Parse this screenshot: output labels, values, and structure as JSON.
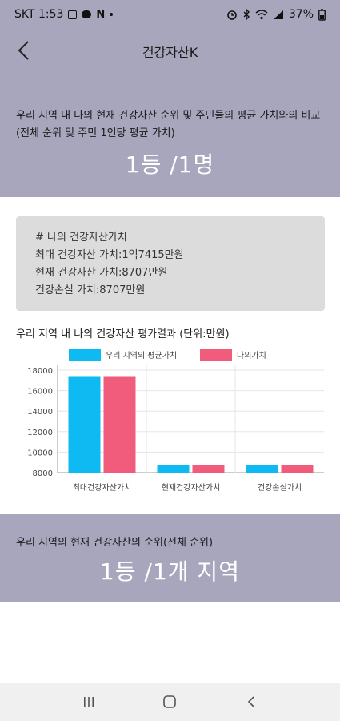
{
  "status_bar": {
    "carrier_time": "SKT 1:53",
    "n_badge": "N",
    "battery": "37%"
  },
  "header": {
    "title": "건강자산K",
    "description": "우리 지역 내 나의 현재 건강자산 순위 및 주민들의 평균 가치와의 비교 (전체 순위 및 주민 1인당 평균 가치)",
    "rank": "1등 /1명"
  },
  "info_card": {
    "heading": "# 나의 건강자산가치",
    "max_value": "최대 건강자산 가치:1억7415만원",
    "current_value": "현재 건강자산 가치:8707만원",
    "loss_value": "건강손실 가치:8707만원"
  },
  "chart": {
    "title": "우리 지역 내 나의 건강자산 평가결과 (단위:만원)"
  },
  "chart_data": {
    "type": "bar",
    "title": "우리 지역 내 나의 건강자산 평가결과 (단위:만원)",
    "categories": [
      "최대건강자산가치",
      "현재건강자산가치",
      "건강손실가치"
    ],
    "series": [
      {
        "name": "우리 지역의 평균가치",
        "color": "#0fb9f2",
        "values": [
          17415,
          8707,
          8707
        ]
      },
      {
        "name": "나의가치",
        "color": "#f25c7c",
        "values": [
          17415,
          8707,
          8707
        ]
      }
    ],
    "ylim": [
      8000,
      18000
    ],
    "yticks": [
      8000,
      10000,
      12000,
      14000,
      16000,
      18000
    ],
    "legend_position": "top",
    "grid": true
  },
  "bottom": {
    "description": "우리 지역의 현재 건강자산의 순위(전체 순위)",
    "rank": "1등 /1개 지역"
  },
  "icons": {
    "back": "chevron-left-icon",
    "recents": "recents-icon",
    "home": "home-icon",
    "nav_back": "nav-back-icon"
  }
}
